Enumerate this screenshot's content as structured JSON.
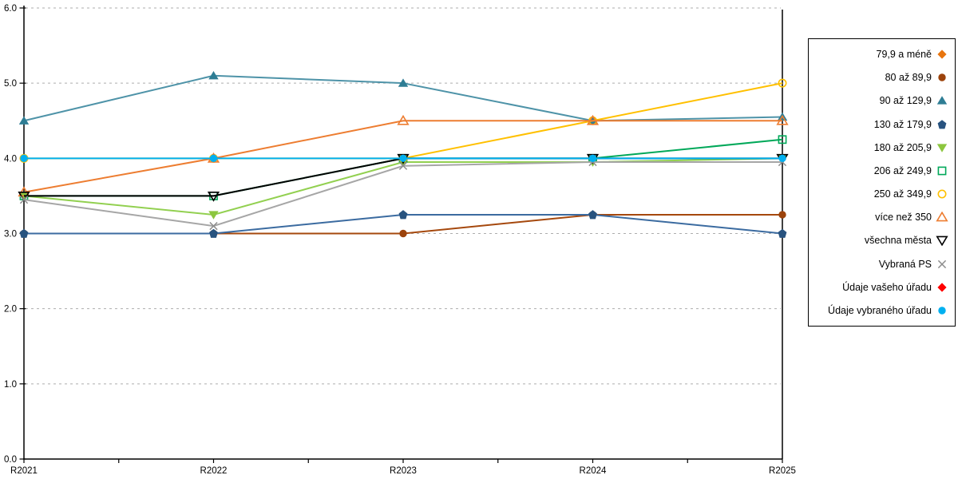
{
  "chart_data": {
    "type": "line",
    "title": "",
    "xlabel": "",
    "ylabel": "",
    "categories": [
      "R2021",
      "R2022",
      "R2023",
      "R2024",
      "R2025"
    ],
    "ylim": [
      0,
      6
    ],
    "ytick_labels": [
      "0.0",
      "1.0",
      "2.0",
      "3.0",
      "4.0",
      "5.0",
      "6.0"
    ],
    "grid": "horizontal-dashed",
    "legend_position": "right",
    "colors": {
      "axis": "#000000",
      "grid": "#ADADAD",
      "plot_right_border": "#000000"
    },
    "series": [
      {
        "label": "79,9 a méně",
        "marker": "diamond",
        "open": false,
        "color": "#ED7D31",
        "marker_color": "#E8750F",
        "values": null
      },
      {
        "label": "80 až 89,9",
        "marker": "circle",
        "open": false,
        "color": "#A5480D",
        "marker_color": "#9C430B",
        "values": [
          3.0,
          3.0,
          3.0,
          3.25,
          3.25
        ]
      },
      {
        "label": "90 až 129,9",
        "marker": "triangle-up",
        "open": false,
        "color": "#4E93A8",
        "marker_color": "#2E7D94",
        "values": [
          4.5,
          5.1,
          5.0,
          4.5,
          4.55
        ]
      },
      {
        "label": "130 až 179,9",
        "marker": "pentagon",
        "open": false,
        "color": "#3B6BA0",
        "marker_color": "#28537F",
        "values": [
          3.0,
          3.0,
          3.25,
          3.25,
          3.0
        ]
      },
      {
        "label": "180 až 205,9",
        "marker": "triangle-down",
        "open": false,
        "color": "#92D050",
        "marker_color": "#8CC63E",
        "values": [
          3.5,
          3.25,
          3.95,
          3.95,
          4.0
        ]
      },
      {
        "label": "206 až 249,9",
        "marker": "square",
        "open": true,
        "color": "#00A859",
        "marker_color": "#00A859",
        "values": [
          3.5,
          3.5,
          4.0,
          4.0,
          4.25
        ]
      },
      {
        "label": "250 až 349,9",
        "marker": "circle",
        "open": true,
        "color": "#FFC000",
        "marker_color": "#FFC000",
        "values": [
          4.0,
          4.0,
          4.0,
          4.5,
          5.0
        ]
      },
      {
        "label": "více než 350",
        "marker": "triangle-up",
        "open": true,
        "color": "#ED7D31",
        "marker_color": "#ED7D31",
        "values": [
          3.55,
          4.0,
          4.5,
          4.5,
          4.5
        ]
      },
      {
        "label": "všechna města",
        "marker": "triangle-down",
        "open": true,
        "color": "#000000",
        "marker_color": "#000000",
        "values": [
          3.5,
          3.5,
          4.0,
          4.0,
          4.0
        ]
      },
      {
        "label": "Vybraná PS",
        "marker": "x",
        "open": true,
        "color": "#A6A6A6",
        "marker_color": "#8C8C8C",
        "values": [
          3.45,
          3.1,
          3.9,
          3.95,
          3.95
        ]
      },
      {
        "label": "Údaje vašeho úřadu",
        "marker": "diamond",
        "open": false,
        "color": "#FF0000",
        "marker_color": "#FF0000",
        "values": null
      },
      {
        "label": "Údaje vybraného úřadu",
        "marker": "circle",
        "open": false,
        "color": "#00B0F0",
        "marker_color": "#00B0F0",
        "values": [
          4.0,
          4.0,
          4.0,
          4.0,
          4.0
        ]
      }
    ]
  }
}
